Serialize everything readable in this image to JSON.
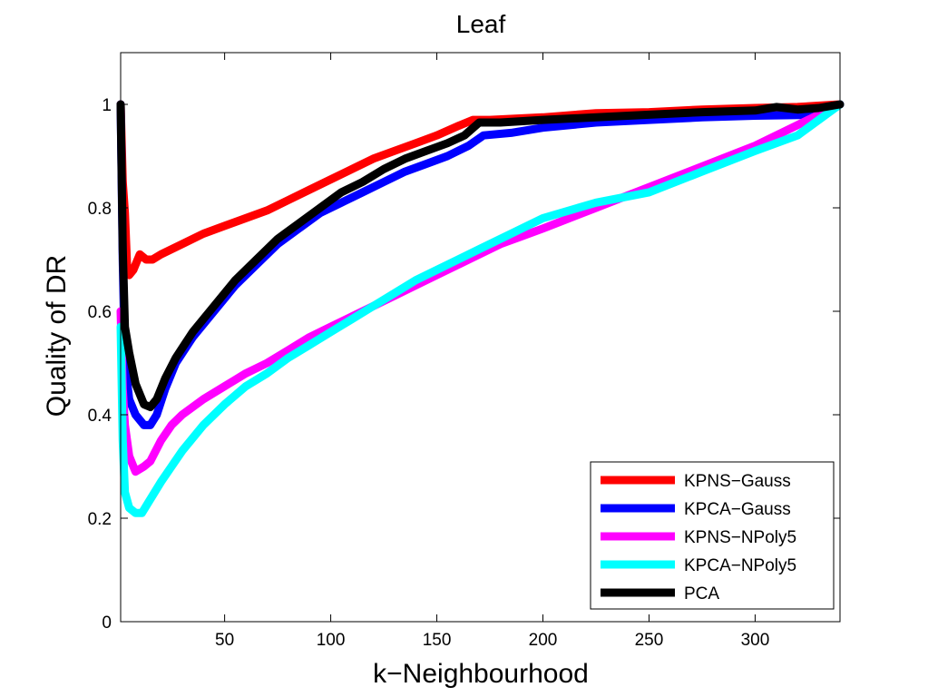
{
  "chart_data": {
    "type": "line",
    "title": "Leaf",
    "xlabel": "k−Neighbourhood",
    "ylabel": "Quality of DR",
    "xlim": [
      1,
      340
    ],
    "ylim": [
      0,
      1.1
    ],
    "xticks": [
      50,
      100,
      150,
      200,
      250,
      300
    ],
    "yticks": [
      0,
      0.2,
      0.4,
      0.6,
      0.8,
      1
    ],
    "xtick_labels": [
      "50",
      "100",
      "150",
      "200",
      "250",
      "300"
    ],
    "ytick_labels": [
      "0",
      "0.2",
      "0.4",
      "0.6",
      "0.8",
      "1"
    ],
    "grid": false,
    "legend_position": "bottom-right",
    "series": [
      {
        "name": "KPNS−Gauss",
        "color": "#ff0000",
        "points": [
          [
            1,
            1.0
          ],
          [
            2,
            0.85
          ],
          [
            3,
            0.79
          ],
          [
            4,
            0.69
          ],
          [
            5,
            0.67
          ],
          [
            7,
            0.68
          ],
          [
            10,
            0.71
          ],
          [
            13,
            0.7
          ],
          [
            16,
            0.7
          ],
          [
            20,
            0.71
          ],
          [
            30,
            0.73
          ],
          [
            40,
            0.75
          ],
          [
            50,
            0.765
          ],
          [
            60,
            0.78
          ],
          [
            70,
            0.795
          ],
          [
            80,
            0.815
          ],
          [
            90,
            0.835
          ],
          [
            100,
            0.855
          ],
          [
            110,
            0.875
          ],
          [
            120,
            0.895
          ],
          [
            130,
            0.91
          ],
          [
            140,
            0.925
          ],
          [
            150,
            0.94
          ],
          [
            160,
            0.958
          ],
          [
            167,
            0.97
          ],
          [
            175,
            0.97
          ],
          [
            200,
            0.975
          ],
          [
            225,
            0.983
          ],
          [
            250,
            0.985
          ],
          [
            275,
            0.99
          ],
          [
            300,
            0.993
          ],
          [
            320,
            0.995
          ],
          [
            340,
            1.0
          ]
        ]
      },
      {
        "name": "KPCA−Gauss",
        "color": "#0000ff",
        "points": [
          [
            1,
            1.0
          ],
          [
            2,
            0.7
          ],
          [
            3,
            0.5
          ],
          [
            5,
            0.43
          ],
          [
            8,
            0.4
          ],
          [
            12,
            0.38
          ],
          [
            15,
            0.38
          ],
          [
            18,
            0.4
          ],
          [
            22,
            0.45
          ],
          [
            27,
            0.5
          ],
          [
            35,
            0.55
          ],
          [
            45,
            0.6
          ],
          [
            55,
            0.65
          ],
          [
            65,
            0.69
          ],
          [
            75,
            0.73
          ],
          [
            85,
            0.76
          ],
          [
            95,
            0.79
          ],
          [
            105,
            0.81
          ],
          [
            115,
            0.83
          ],
          [
            125,
            0.85
          ],
          [
            135,
            0.87
          ],
          [
            145,
            0.885
          ],
          [
            155,
            0.9
          ],
          [
            165,
            0.92
          ],
          [
            172,
            0.94
          ],
          [
            185,
            0.945
          ],
          [
            200,
            0.955
          ],
          [
            225,
            0.965
          ],
          [
            250,
            0.97
          ],
          [
            275,
            0.975
          ],
          [
            300,
            0.978
          ],
          [
            330,
            0.98
          ],
          [
            340,
            1.0
          ]
        ]
      },
      {
        "name": "KPNS−NPoly5",
        "color": "#ff00ff",
        "points": [
          [
            1,
            0.6
          ],
          [
            2,
            0.45
          ],
          [
            3,
            0.38
          ],
          [
            5,
            0.32
          ],
          [
            8,
            0.29
          ],
          [
            12,
            0.3
          ],
          [
            15,
            0.31
          ],
          [
            20,
            0.35
          ],
          [
            25,
            0.38
          ],
          [
            30,
            0.4
          ],
          [
            40,
            0.43
          ],
          [
            50,
            0.455
          ],
          [
            60,
            0.48
          ],
          [
            70,
            0.5
          ],
          [
            80,
            0.525
          ],
          [
            90,
            0.55
          ],
          [
            100,
            0.57
          ],
          [
            110,
            0.59
          ],
          [
            120,
            0.61
          ],
          [
            130,
            0.63
          ],
          [
            140,
            0.65
          ],
          [
            150,
            0.67
          ],
          [
            160,
            0.69
          ],
          [
            170,
            0.71
          ],
          [
            180,
            0.73
          ],
          [
            190,
            0.745
          ],
          [
            200,
            0.76
          ],
          [
            225,
            0.8
          ],
          [
            250,
            0.84
          ],
          [
            275,
            0.88
          ],
          [
            300,
            0.92
          ],
          [
            320,
            0.96
          ],
          [
            340,
            1.0
          ]
        ]
      },
      {
        "name": "KPCA−NPoly5",
        "color": "#00ffff",
        "points": [
          [
            1,
            0.57
          ],
          [
            2,
            0.35
          ],
          [
            3,
            0.25
          ],
          [
            5,
            0.22
          ],
          [
            8,
            0.21
          ],
          [
            11,
            0.21
          ],
          [
            14,
            0.23
          ],
          [
            20,
            0.27
          ],
          [
            25,
            0.3
          ],
          [
            30,
            0.33
          ],
          [
            40,
            0.38
          ],
          [
            50,
            0.42
          ],
          [
            60,
            0.455
          ],
          [
            70,
            0.48
          ],
          [
            80,
            0.51
          ],
          [
            90,
            0.535
          ],
          [
            100,
            0.56
          ],
          [
            110,
            0.585
          ],
          [
            120,
            0.61
          ],
          [
            130,
            0.635
          ],
          [
            140,
            0.66
          ],
          [
            150,
            0.68
          ],
          [
            160,
            0.7
          ],
          [
            170,
            0.72
          ],
          [
            180,
            0.74
          ],
          [
            190,
            0.76
          ],
          [
            200,
            0.78
          ],
          [
            225,
            0.81
          ],
          [
            250,
            0.83
          ],
          [
            275,
            0.87
          ],
          [
            300,
            0.91
          ],
          [
            320,
            0.94
          ],
          [
            340,
            1.0
          ]
        ]
      },
      {
        "name": "PCA",
        "color": "#000000",
        "points": [
          [
            1,
            1.0
          ],
          [
            2,
            0.72
          ],
          [
            3,
            0.57
          ],
          [
            5,
            0.52
          ],
          [
            8,
            0.46
          ],
          [
            12,
            0.42
          ],
          [
            15,
            0.415
          ],
          [
            18,
            0.43
          ],
          [
            22,
            0.47
          ],
          [
            27,
            0.51
          ],
          [
            35,
            0.56
          ],
          [
            45,
            0.61
          ],
          [
            55,
            0.66
          ],
          [
            65,
            0.7
          ],
          [
            75,
            0.74
          ],
          [
            85,
            0.77
          ],
          [
            95,
            0.8
          ],
          [
            105,
            0.83
          ],
          [
            115,
            0.85
          ],
          [
            125,
            0.875
          ],
          [
            135,
            0.895
          ],
          [
            145,
            0.91
          ],
          [
            155,
            0.925
          ],
          [
            163,
            0.94
          ],
          [
            170,
            0.965
          ],
          [
            180,
            0.965
          ],
          [
            200,
            0.97
          ],
          [
            225,
            0.975
          ],
          [
            250,
            0.98
          ],
          [
            275,
            0.985
          ],
          [
            300,
            0.988
          ],
          [
            310,
            0.995
          ],
          [
            320,
            0.99
          ],
          [
            330,
            0.993
          ],
          [
            340,
            1.0
          ]
        ]
      }
    ]
  }
}
